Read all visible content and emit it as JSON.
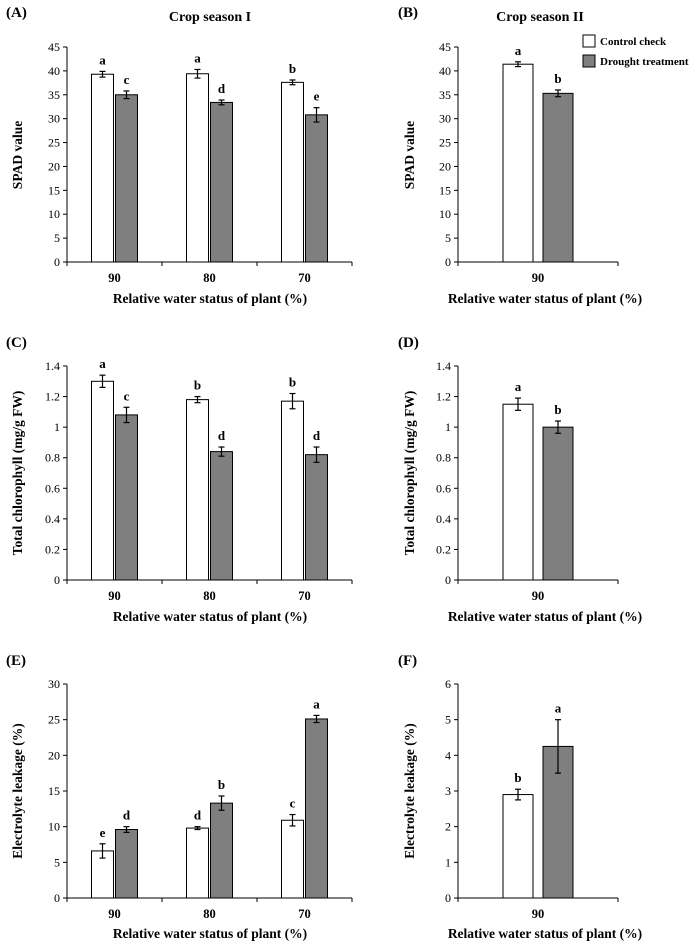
{
  "legend": {
    "control_label": "Control check",
    "drought_label": "Drought treatment",
    "colors": {
      "control": "#ffffff",
      "drought": "#7f7f7f"
    }
  },
  "chart_data": [
    {
      "panel": "(A)",
      "type": "bar",
      "title": "Crop season I",
      "xlabel": "Relative water status of plant (%)",
      "ylabel": "SPAD value",
      "ylim": [
        0,
        45
      ],
      "yticks": [
        0,
        5,
        10,
        15,
        20,
        25,
        30,
        35,
        40,
        45
      ],
      "categories": [
        "90",
        "80",
        "70"
      ],
      "series": [
        {
          "name": "Control check",
          "values": [
            39.3,
            39.4,
            37.6
          ],
          "errors": [
            0.6,
            0.9,
            0.5
          ],
          "letters": [
            "a",
            "a",
            "b"
          ]
        },
        {
          "name": "Drought treatment",
          "values": [
            35.0,
            33.4,
            30.8
          ],
          "errors": [
            0.8,
            0.5,
            1.5
          ],
          "letters": [
            "c",
            "d",
            "e"
          ]
        }
      ]
    },
    {
      "panel": "(B)",
      "type": "bar",
      "title": "Crop season II",
      "xlabel": "Relative water status of plant (%)",
      "ylabel": "SPAD value",
      "ylim": [
        0,
        45
      ],
      "yticks": [
        0,
        5,
        10,
        15,
        20,
        25,
        30,
        35,
        40,
        45
      ],
      "categories": [
        "90"
      ],
      "series": [
        {
          "name": "Control check",
          "values": [
            41.4
          ],
          "errors": [
            0.5
          ],
          "letters": [
            "a"
          ]
        },
        {
          "name": "Drought treatment",
          "values": [
            35.3
          ],
          "errors": [
            0.7
          ],
          "letters": [
            "b"
          ]
        }
      ]
    },
    {
      "panel": "(C)",
      "type": "bar",
      "title": "",
      "xlabel": "Relative water status of plant (%)",
      "ylabel": "Total chlorophyll (mg/g FW)",
      "ylim": [
        0,
        1.4
      ],
      "yticks": [
        0,
        0.2,
        0.4,
        0.6,
        0.8,
        1,
        1.2,
        1.4
      ],
      "categories": [
        "90",
        "80",
        "70"
      ],
      "series": [
        {
          "name": "Control check",
          "values": [
            1.3,
            1.18,
            1.17
          ],
          "errors": [
            0.04,
            0.02,
            0.05
          ],
          "letters": [
            "a",
            "b",
            "b"
          ]
        },
        {
          "name": "Drought treatment",
          "values": [
            1.08,
            0.84,
            0.82
          ],
          "errors": [
            0.05,
            0.03,
            0.05
          ],
          "letters": [
            "c",
            "d",
            "d"
          ]
        }
      ]
    },
    {
      "panel": "(D)",
      "type": "bar",
      "title": "",
      "xlabel": "Relative water status of plant (%)",
      "ylabel": "Total chlorophyll (mg/g FW)",
      "ylim": [
        0,
        1.4
      ],
      "yticks": [
        0,
        0.2,
        0.4,
        0.6,
        0.8,
        1,
        1.2,
        1.4
      ],
      "categories": [
        "90"
      ],
      "series": [
        {
          "name": "Control check",
          "values": [
            1.15
          ],
          "errors": [
            0.04
          ],
          "letters": [
            "a"
          ]
        },
        {
          "name": "Drought treatment",
          "values": [
            1.0
          ],
          "errors": [
            0.04
          ],
          "letters": [
            "b"
          ]
        }
      ]
    },
    {
      "panel": "(E)",
      "type": "bar",
      "title": "",
      "xlabel": "Relative water status of plant (%)",
      "ylabel": "Electrolyte leakage (%)",
      "ylim": [
        0,
        30
      ],
      "yticks": [
        0,
        5,
        10,
        15,
        20,
        25,
        30
      ],
      "categories": [
        "90",
        "80",
        "70"
      ],
      "series": [
        {
          "name": "Control check",
          "values": [
            6.6,
            9.8,
            10.9
          ],
          "errors": [
            1.0,
            0.2,
            0.8
          ],
          "letters": [
            "e",
            "d",
            "c"
          ]
        },
        {
          "name": "Drought treatment",
          "values": [
            9.6,
            13.3,
            25.1
          ],
          "errors": [
            0.4,
            1.0,
            0.5
          ],
          "letters": [
            "d",
            "b",
            "a"
          ]
        }
      ]
    },
    {
      "panel": "(F)",
      "type": "bar",
      "title": "",
      "xlabel": "Relative water status of plant (%)",
      "ylabel": "Electrolyte leakage (%)",
      "ylim": [
        0,
        6
      ],
      "yticks": [
        0,
        1,
        2,
        3,
        4,
        5,
        6
      ],
      "categories": [
        "90"
      ],
      "series": [
        {
          "name": "Control check",
          "values": [
            2.9
          ],
          "errors": [
            0.15
          ],
          "letters": [
            "b"
          ]
        },
        {
          "name": "Drought treatment",
          "values": [
            4.25
          ],
          "errors": [
            0.75
          ],
          "letters": [
            "a"
          ]
        }
      ]
    }
  ]
}
